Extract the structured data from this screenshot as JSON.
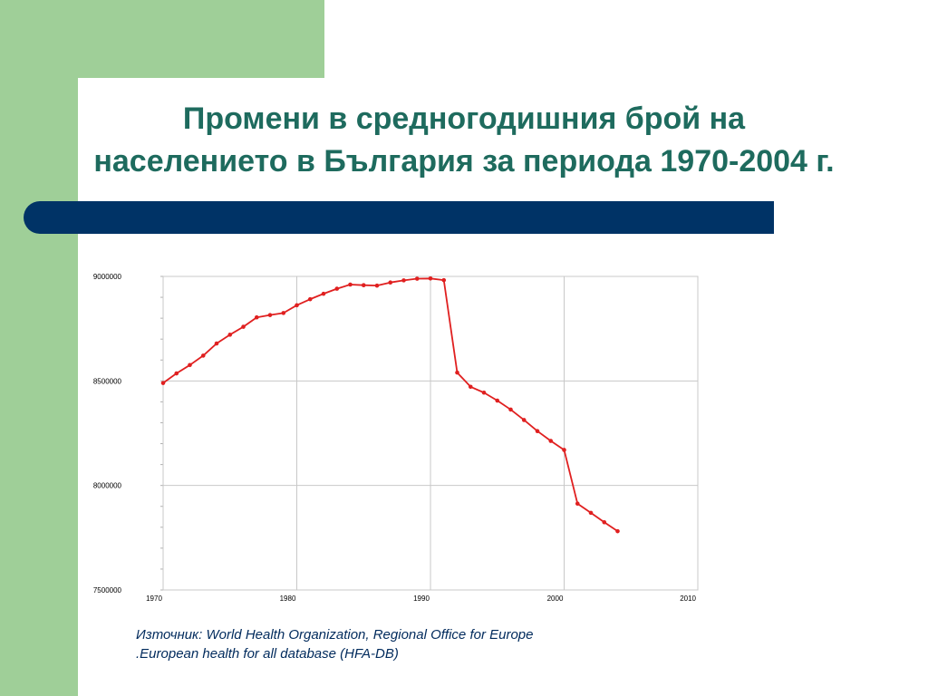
{
  "slide": {
    "title_line1": "Промени в средногодишния брой на",
    "title_line2": "населението в България за периода 1970-2004 г.",
    "source_line1": "Източник: World Health Organization, Regional Office for Europe",
    "source_line2": ".European health for all database (HFA-DB)"
  },
  "colors": {
    "accent_green": "#9fcf98",
    "title_teal": "#1e6b5e",
    "bar_navy": "#003366",
    "line_red": "#e02020"
  },
  "chart_data": {
    "type": "line",
    "title": "",
    "xlabel": "",
    "ylabel": "",
    "xlim": [
      1970,
      2010
    ],
    "ylim": [
      7500000,
      9000000
    ],
    "x_ticks": [
      1970,
      1980,
      1990,
      2000,
      2010
    ],
    "y_ticks": [
      7500000,
      8000000,
      8500000,
      9000000
    ],
    "x_tick_labels": [
      "1970",
      "1980",
      "1990",
      "2000",
      "2010"
    ],
    "y_tick_labels": [
      "7500000",
      "8000000",
      "8500000",
      "9000000"
    ],
    "grid": true,
    "legend": "none",
    "series": [
      {
        "x": [
          1970,
          1971,
          1972,
          1973,
          1974,
          1975,
          1976,
          1977,
          1978,
          1979,
          1980,
          1981,
          1982,
          1983,
          1984,
          1985,
          1986,
          1987,
          1988,
          1989,
          1990,
          1991,
          1992,
          1993,
          1994,
          1995,
          1996,
          1997,
          1998,
          1999,
          2000,
          2001,
          2002,
          2003,
          2004
        ],
        "values": [
          8490000,
          8536000,
          8576000,
          8621000,
          8679000,
          8721000,
          8759000,
          8804000,
          8815000,
          8825000,
          8862000,
          8891000,
          8917000,
          8941000,
          8961000,
          8958000,
          8956000,
          8971000,
          8981000,
          8989000,
          8990000,
          8982000,
          8540000,
          8472000,
          8444000,
          8406000,
          8363000,
          8313000,
          8260000,
          8213000,
          8170000,
          7913000,
          7869000,
          7824000,
          7781000
        ]
      }
    ]
  }
}
